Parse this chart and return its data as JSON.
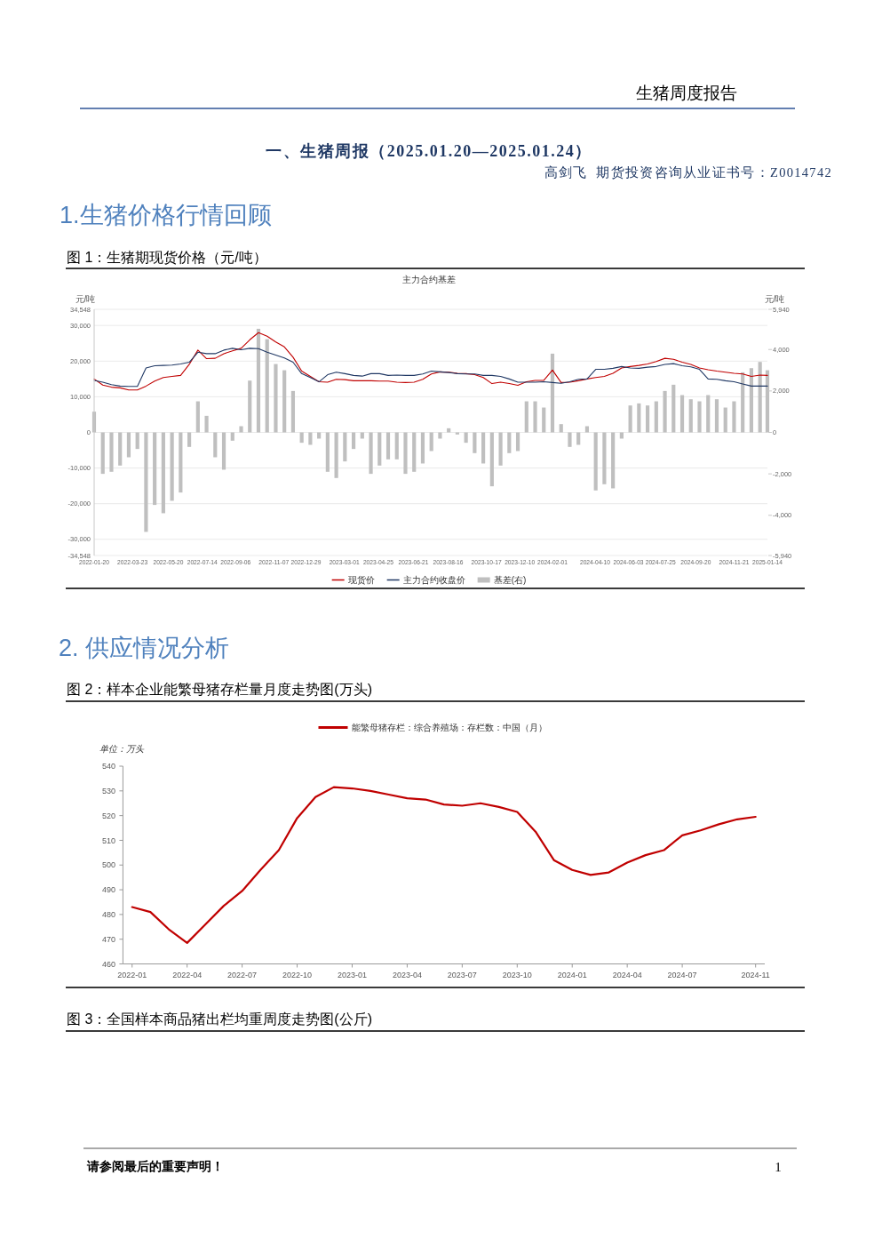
{
  "chart_data": [
    {
      "type": "line",
      "title": "图 1：生猪期现货价格（元/吨）",
      "subtitle": "主力合约基差",
      "ylabel": "元/吨",
      "y2label": "元/吨",
      "x": [
        "2022-01-20",
        "2022-02-03",
        "2022-02-17",
        "2022-03-03",
        "2022-03-17",
        "2022-03-31",
        "2022-04-14",
        "2022-04-28",
        "2022-05-12",
        "2022-05-26",
        "2022-06-09",
        "2022-06-23",
        "2022-07-07",
        "2022-07-21",
        "2022-08-04",
        "2022-08-18",
        "2022-09-01",
        "2022-09-15",
        "2022-09-29",
        "2022-10-13",
        "2022-10-27",
        "2022-11-10",
        "2022-11-24",
        "2022-12-08",
        "2022-12-22",
        "2023-01-05",
        "2023-01-19",
        "2023-02-02",
        "2023-02-16",
        "2023-03-02",
        "2023-03-16",
        "2023-03-30",
        "2023-04-13",
        "2023-04-27",
        "2023-05-11",
        "2023-05-25",
        "2023-06-08",
        "2023-06-22",
        "2023-07-06",
        "2023-07-20",
        "2023-08-03",
        "2023-08-17",
        "2023-08-31",
        "2023-09-14",
        "2023-09-28",
        "2023-10-12",
        "2023-10-26",
        "2023-11-09",
        "2023-11-23",
        "2023-12-07",
        "2023-12-21",
        "2024-01-04",
        "2024-01-18",
        "2024-02-01",
        "2024-02-15",
        "2024-02-29",
        "2024-03-14",
        "2024-03-28",
        "2024-04-11",
        "2024-04-25",
        "2024-05-09",
        "2024-05-23",
        "2024-06-06",
        "2024-06-20",
        "2024-07-04",
        "2024-07-18",
        "2024-08-01",
        "2024-08-15",
        "2024-08-29",
        "2024-09-12",
        "2024-09-26",
        "2024-10-10",
        "2024-10-24",
        "2024-11-07",
        "2024-11-21",
        "2024-12-05",
        "2024-12-19",
        "2025-01-02",
        "2025-01-14"
      ],
      "series": [
        {
          "name": "现货价",
          "color": "#c00000",
          "values": [
            15000,
            13300,
            12700,
            12500,
            11900,
            11900,
            13000,
            14400,
            15400,
            15700,
            16000,
            19100,
            23100,
            20700,
            20800,
            22100,
            22900,
            23600,
            26000,
            28000,
            27000,
            25400,
            24000,
            21100,
            17200,
            15700,
            14200,
            14100,
            14900,
            14800,
            14500,
            14500,
            14500,
            14400,
            14400,
            14100,
            14000,
            14100,
            14900,
            16400,
            17000,
            16900,
            16600,
            16500,
            16200,
            15400,
            13700,
            14100,
            13700,
            13200,
            14200,
            14600,
            14600,
            17500,
            14000,
            14100,
            14500,
            15000,
            15400,
            15700,
            16600,
            18100,
            18500,
            18800,
            19200,
            19900,
            20800,
            20500,
            19700,
            19100,
            18100,
            17600,
            17200,
            16900,
            16600,
            16400,
            15700,
            16100,
            16000
          ]
        },
        {
          "name": "主力合约收盘价",
          "color": "#203864",
          "values": [
            14600,
            14100,
            13400,
            13000,
            12900,
            12900,
            18100,
            18700,
            18800,
            18900,
            19200,
            19700,
            22500,
            22100,
            22100,
            23100,
            23600,
            23200,
            23600,
            23500,
            22500,
            21700,
            20900,
            19700,
            16500,
            15400,
            14200,
            16200,
            16900,
            16500,
            16000,
            15800,
            16500,
            16500,
            16000,
            16100,
            16000,
            16000,
            16400,
            17200,
            17000,
            16800,
            16500,
            16400,
            16400,
            16000,
            16000,
            15700,
            15000,
            14100,
            14100,
            14100,
            14200,
            14000,
            13800,
            14200,
            14900,
            15000,
            17700,
            17700,
            18000,
            18500,
            18100,
            18000,
            18300,
            18500,
            19100,
            19300,
            18700,
            18400,
            17700,
            15000,
            14900,
            14500,
            14200,
            13600,
            13000,
            13000,
            13000
          ]
        },
        {
          "name": "基差(右)",
          "type": "bar",
          "axis": "y2",
          "color": "#bfbfbf",
          "values": [
            1000,
            -2000,
            -1900,
            -1600,
            -1200,
            -800,
            -4800,
            -3500,
            -3900,
            -3300,
            -2900,
            -700,
            1500,
            800,
            -1200,
            -1800,
            -400,
            300,
            2500,
            5000,
            4500,
            3300,
            3000,
            2000,
            -500,
            -600,
            -300,
            -1900,
            -2200,
            -1400,
            -800,
            -300,
            -2000,
            -1600,
            -1300,
            -1300,
            -2000,
            -1900,
            -1500,
            -900,
            -300,
            200,
            -100,
            -500,
            -1000,
            -1500,
            -2600,
            -1600,
            -1000,
            -900,
            1500,
            1500,
            1200,
            3800,
            400,
            -700,
            -600,
            300,
            -2800,
            -2500,
            -2700,
            -300,
            1300,
            1400,
            1300,
            1500,
            2000,
            2300,
            1800,
            1600,
            1500,
            1800,
            1600,
            1200,
            1500,
            2900,
            3100,
            3400,
            3000
          ]
        }
      ],
      "xlim": [
        "2022-01-20",
        "2025-01-14"
      ],
      "xticks": [
        "2022-01-20",
        "2022-03-23",
        "2022-05-20",
        "2022-07-14",
        "2022-09-06",
        "2022-11-07",
        "2022-12-29",
        "2023-03-01",
        "2023-04-25",
        "2023-06-21",
        "2023-08-16",
        "2023-10-17",
        "2023-12-10",
        "2024-02-01",
        "2024-04-10",
        "2024-06-03",
        "2024-07-25",
        "2024-09-20",
        "2024-11-21",
        "2025-01-14"
      ],
      "ylim": [
        -34548,
        34548
      ],
      "yticks": [
        {
          "value": 34548,
          "label": "34,548"
        },
        {
          "value": 30000,
          "label": "30,000"
        },
        {
          "value": 20000,
          "label": "20,000"
        },
        {
          "value": 10000,
          "label": "10,000"
        },
        0,
        {
          "value": -10000,
          "label": "-10,000"
        },
        {
          "value": -20000,
          "label": "-20,000"
        },
        {
          "value": -30000,
          "label": "-30,000"
        },
        {
          "value": -34548,
          "label": "-34,548"
        }
      ],
      "y2lim": [
        -5940,
        5940
      ],
      "y2ticks": [
        {
          "value": 5940,
          "label": "5,940"
        },
        {
          "value": 4000,
          "label": "4,000"
        },
        {
          "value": 2000,
          "label": "2,000"
        },
        0,
        {
          "value": -2000,
          "label": "-2,000"
        },
        {
          "value": -4000,
          "label": "-4,000"
        },
        {
          "value": -5940,
          "label": "-5,940"
        }
      ],
      "grid": "y",
      "legend": "bottom",
      "annotations": [
        "生猪周度报告",
        "一、生猪周报（2025.01.20—2025.01.24）",
        "高剑飞  期货投资咨询从业证书号：Z0014742",
        "1.生猪价格行情回顾"
      ]
    },
    {
      "type": "line",
      "title": "图 2：样本企业能繁母猪存栏量月度走势图(万头)",
      "ylabel": "单位：万头",
      "categories": [
        "2022-01",
        null,
        null,
        "2022-04",
        null,
        null,
        "2022-07",
        null,
        null,
        "2022-10",
        null,
        null,
        "2023-01",
        null,
        null,
        "2023-04",
        null,
        null,
        "2023-07",
        null,
        null,
        "2023-10",
        null,
        null,
        "2024-01",
        null,
        null,
        "2024-04",
        null,
        null,
        "2024-07",
        null,
        null,
        null,
        "2024-11"
      ],
      "series": [
        {
          "name": "能繁母猪存栏：综合养殖场：存栏数：中国（月）",
          "color": "#c00000",
          "values": [
            483.0,
            481.0,
            474.0,
            468.5,
            476.0,
            483.5,
            489.5,
            498.0,
            506.0,
            519.0,
            527.5,
            531.5,
            531.0,
            530.0,
            528.5,
            527.0,
            526.5,
            524.5,
            524.0,
            525.0,
            523.5,
            521.5,
            513.5,
            502.0,
            498.0,
            496.0,
            497.0,
            501.0,
            504.0,
            506.0,
            512.0,
            514.0,
            516.5,
            518.5,
            519.5
          ]
        }
      ],
      "ylim": [
        460,
        540
      ],
      "yticks": [
        460,
        470,
        480,
        490,
        500,
        510,
        520,
        530,
        540
      ],
      "legend": "top",
      "annotations": [
        "2. 供应情况分析",
        "图 3：全国样本商品猪出栏均重周度走势图(公斤)",
        "请参阅最后的重要声明！",
        "1"
      ]
    }
  ]
}
